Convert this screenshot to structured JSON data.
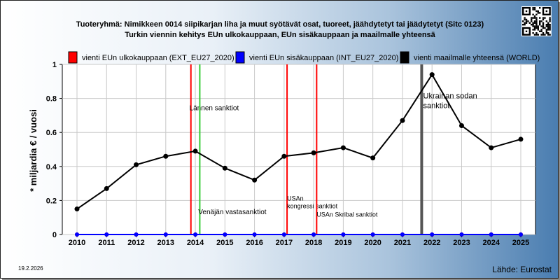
{
  "chart_data": {
    "type": "line",
    "title": "Tuoteryhmä: Nimikkeen 0014 siipikarjan liha ja muut syötävät osat, tuoreet, jäähdytetyt tai jäädytetyt (Sitc 0123)",
    "subtitle": "Turkin viennin kehitys EUn ulkokauppaan, EUn sisäkauppaan ja maailmalle yhteensä",
    "ylabel": "* miljardia € / vuosi",
    "xlabel": "",
    "ylim": [
      0,
      1
    ],
    "y_ticks": [
      "0",
      "0.2",
      "0.4",
      "0.6",
      "0.8",
      "1"
    ],
    "x": [
      "2010",
      "2011",
      "2012",
      "2013",
      "2014",
      "2015",
      "2016",
      "2017",
      "2018",
      "2019",
      "2020",
      "2021",
      "2022",
      "2023",
      "2024",
      "2025"
    ],
    "grid": true,
    "legend_position": "top",
    "series": [
      {
        "name": "vienti EUn ulkokauppaan (EXT_EU27_2020)",
        "color": "#ff0000",
        "values": [
          0,
          0,
          0,
          0,
          0,
          0,
          0,
          0,
          0,
          0,
          0,
          0,
          0,
          0,
          0,
          0
        ]
      },
      {
        "name": "vienti EUn sisäkauppaan (INT_EU27_2020)",
        "color": "#0000ff",
        "values": [
          0,
          0,
          0,
          0,
          0,
          0,
          0,
          0,
          0,
          0,
          0,
          0,
          0,
          0,
          0,
          0
        ]
      },
      {
        "name": "vienti maailmalle yhteensä (WORLD)",
        "color": "#000000",
        "values": [
          0.15,
          0.27,
          0.41,
          0.46,
          0.49,
          0.39,
          0.32,
          0.46,
          0.48,
          0.51,
          0.45,
          0.67,
          0.94,
          0.64,
          0.51,
          0.56
        ]
      }
    ],
    "events": [
      {
        "label": "Lännen sanktiot",
        "year": 2013.85,
        "color": "#ff0000",
        "label_pos": "upper",
        "label_year": 2013.8,
        "label_y": 0.73,
        "font": "ann"
      },
      {
        "label": "Venäjän vastasanktiot",
        "year": 2014.15,
        "color": "#33cc33",
        "label_pos": "lower",
        "label_year": 2014.1,
        "label_y": 0.12,
        "font": "ann"
      },
      {
        "label": "USAn kongressi sanktiot",
        "year": 2017.1,
        "color": "#ff0000",
        "label_pos": "lower",
        "label_lines": [
          "USAn",
          "kongressi sanktiot"
        ],
        "label_year": 2017.1,
        "label_y": 0.2,
        "font": "ann-small"
      },
      {
        "label": "USAn Skribal sanktiot",
        "year": 2018.1,
        "color": "#ff0000",
        "label_pos": "lower",
        "label_year": 2018.1,
        "label_y": 0.105,
        "font": "ann-small"
      },
      {
        "label": "Ukrainan sodan sanktiot",
        "year": 2021.65,
        "color": "#555555",
        "label_pos": "upper",
        "label_lines": [
          "Ukrainan sodan",
          "sanktiot"
        ],
        "label_year": 2021.7,
        "label_y": 0.8,
        "font": "ann-big"
      }
    ]
  },
  "footer": {
    "date": "19.2.2026",
    "source": "Lähde: Eurostat"
  },
  "qr": {
    "icon": "qr-code-icon"
  }
}
